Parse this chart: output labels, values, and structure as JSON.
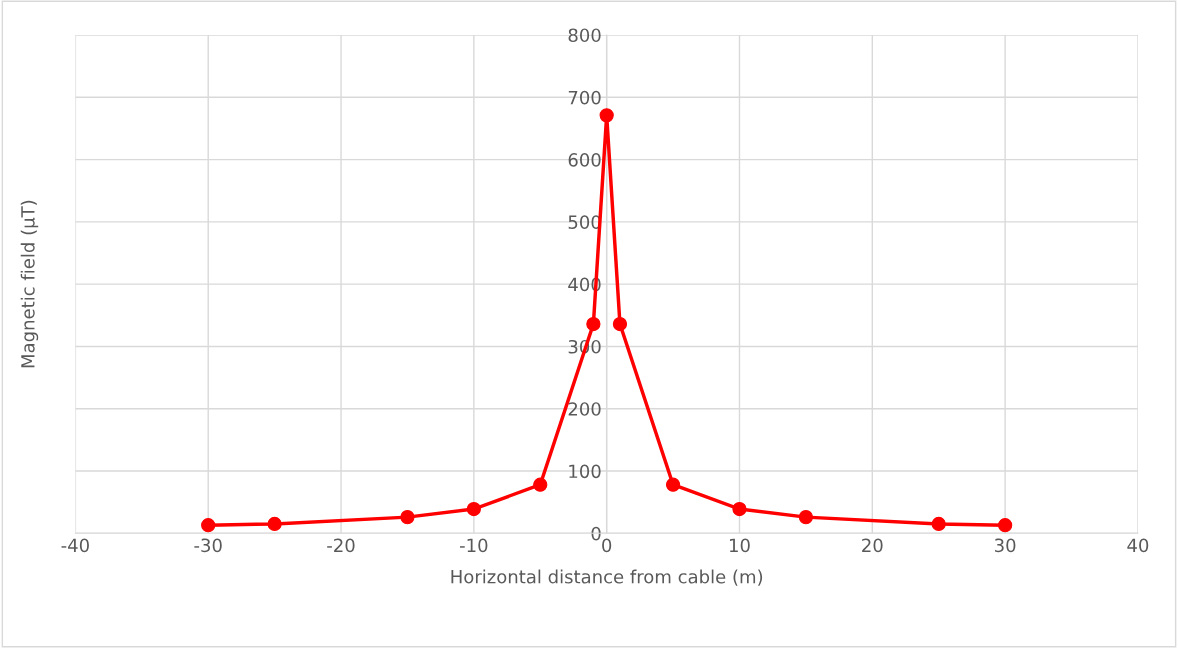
{
  "chart_data": {
    "type": "line",
    "xlabel": "Horizontal distance from cable (m)",
    "ylabel": "Magnetic field (µT)",
    "x": [
      -30,
      -25,
      -15,
      -10,
      -5,
      -1,
      0,
      1,
      5,
      10,
      15,
      25,
      30
    ],
    "series": [
      {
        "color": "#ff0000",
        "values": [
          13,
          15,
          26,
          39,
          78,
          336,
          671,
          336,
          78,
          39,
          26,
          15,
          13
        ]
      }
    ],
    "xlim": [
      -40,
      40
    ],
    "xticks": [
      -40,
      -30,
      -20,
      -10,
      0,
      10,
      20,
      30,
      40
    ],
    "ylim": [
      0,
      800
    ],
    "yticks": [
      0,
      100,
      200,
      300,
      400,
      500,
      600,
      700,
      800
    ],
    "grid": true,
    "legend": false,
    "marker": "circle",
    "line_style": "solid"
  }
}
